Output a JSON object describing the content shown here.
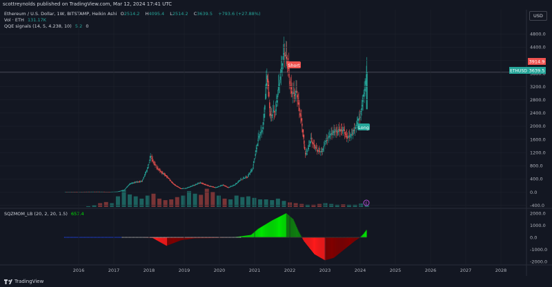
{
  "published": "scottreynolds published on TradingView.com, Mar 12, 2024 17:41 UTC",
  "legend": {
    "symbol": "Ethereum / U.S. Dollar, 1W, BITSTAMP, Heikin Ashi",
    "o_label": "O",
    "o": "2514.2",
    "h_label": "H",
    "h": "4095.4",
    "l_label": "L",
    "l": "2514.2",
    "c_label": "C",
    "c": "3639.5",
    "change": "+793.6 (+27.88%)",
    "vol_label": "Vol · ETH",
    "vol": "131.17K",
    "qqe_label": "QQE signals (14, 5, 4.238, 10)",
    "qqe_v1": "5.2",
    "qqe_v2": "0"
  },
  "sqz_legend": {
    "label": "SQZMOM_LB (20, 2, 20, 1.5)",
    "value": "657.4"
  },
  "currency_button": "USD",
  "price_axis": {
    "ticks": [
      "4800.0",
      "4400.0",
      "4000.0",
      "3600.0",
      "3200.0",
      "2800.0",
      "2400.0",
      "2000.0",
      "1600.0",
      "1200.0",
      "800.0",
      "400.0",
      "0.0",
      "-400.0"
    ],
    "tick_values": [
      4800,
      4400,
      4000,
      3600,
      3200,
      2800,
      2400,
      2000,
      1600,
      1200,
      800,
      400,
      0,
      -400
    ]
  },
  "price_tags": {
    "high_tag": "3914.9",
    "high_value": 3914.9,
    "symbol_tag": "ETHUSD",
    "last_tag": "3639.5",
    "last_value": 3639.5
  },
  "osc_axis": {
    "ticks": [
      "2000.0",
      "1000.0",
      "0.0",
      "-1000.0",
      "-2000.0"
    ],
    "tick_values": [
      2000,
      1000,
      0,
      -1000,
      -2000
    ]
  },
  "time_axis": [
    "2016",
    "2017",
    "2018",
    "2019",
    "2020",
    "2021",
    "2022",
    "2023",
    "2024",
    "2025",
    "2026",
    "2027",
    "2028"
  ],
  "signals": {
    "short": "Short",
    "long": "Long",
    "marker": "E"
  },
  "branding": "TradingView",
  "colors": {
    "up": "#26a69a",
    "down": "#ef5350",
    "bg": "#131722",
    "sqz_up": "#00e600",
    "sqz_down": "#ff1a1a"
  },
  "chart_data": {
    "type": "candlestick",
    "timeframe": "1W",
    "x_range": [
      2015.5,
      2028.5
    ],
    "y_range": [
      -450,
      4950
    ],
    "series_points": [
      {
        "t": 2015.6,
        "v": 10
      },
      {
        "t": 2016.0,
        "v": 10
      },
      {
        "t": 2016.5,
        "v": 12
      },
      {
        "t": 2016.9,
        "v": 10
      },
      {
        "t": 2017.1,
        "v": 15
      },
      {
        "t": 2017.3,
        "v": 70
      },
      {
        "t": 2017.45,
        "v": 250
      },
      {
        "t": 2017.6,
        "v": 300
      },
      {
        "t": 2017.8,
        "v": 330
      },
      {
        "t": 2017.95,
        "v": 700
      },
      {
        "t": 2018.05,
        "v": 1100
      },
      {
        "t": 2018.15,
        "v": 850
      },
      {
        "t": 2018.3,
        "v": 650
      },
      {
        "t": 2018.5,
        "v": 480
      },
      {
        "t": 2018.7,
        "v": 240
      },
      {
        "t": 2018.9,
        "v": 110
      },
      {
        "t": 2019.05,
        "v": 120
      },
      {
        "t": 2019.3,
        "v": 220
      },
      {
        "t": 2019.45,
        "v": 290
      },
      {
        "t": 2019.7,
        "v": 190
      },
      {
        "t": 2019.9,
        "v": 140
      },
      {
        "t": 2020.1,
        "v": 220
      },
      {
        "t": 2020.25,
        "v": 140
      },
      {
        "t": 2020.45,
        "v": 230
      },
      {
        "t": 2020.6,
        "v": 380
      },
      {
        "t": 2020.8,
        "v": 470
      },
      {
        "t": 2020.95,
        "v": 730
      },
      {
        "t": 2021.1,
        "v": 1600
      },
      {
        "t": 2021.25,
        "v": 2000
      },
      {
        "t": 2021.35,
        "v": 3600
      },
      {
        "t": 2021.45,
        "v": 2300
      },
      {
        "t": 2021.6,
        "v": 2500
      },
      {
        "t": 2021.7,
        "v": 3300
      },
      {
        "t": 2021.85,
        "v": 4300
      },
      {
        "t": 2021.95,
        "v": 3800
      },
      {
        "t": 2022.05,
        "v": 3000
      },
      {
        "t": 2022.2,
        "v": 3000
      },
      {
        "t": 2022.35,
        "v": 2000
      },
      {
        "t": 2022.45,
        "v": 1100
      },
      {
        "t": 2022.6,
        "v": 1600
      },
      {
        "t": 2022.75,
        "v": 1300
      },
      {
        "t": 2022.9,
        "v": 1200
      },
      {
        "t": 2023.05,
        "v": 1600
      },
      {
        "t": 2023.2,
        "v": 1800
      },
      {
        "t": 2023.35,
        "v": 1850
      },
      {
        "t": 2023.5,
        "v": 1900
      },
      {
        "t": 2023.65,
        "v": 1650
      },
      {
        "t": 2023.8,
        "v": 1800
      },
      {
        "t": 2023.92,
        "v": 2100
      },
      {
        "t": 2024.0,
        "v": 2300
      },
      {
        "t": 2024.1,
        "v": 2900
      },
      {
        "t": 2024.19,
        "v": 3639.5
      }
    ],
    "volume": [
      0,
      0,
      0,
      0,
      2,
      5,
      10,
      13,
      10,
      28,
      45,
      33,
      28,
      22,
      30,
      35,
      22,
      18,
      20,
      26,
      30,
      42,
      35,
      32,
      48,
      40,
      30,
      22,
      20,
      30,
      26,
      28,
      24,
      20,
      20,
      18,
      22,
      16,
      12,
      10,
      8,
      6,
      6,
      8,
      10,
      8,
      6,
      7,
      6,
      6,
      9,
      12
    ],
    "squeeze_momentum": [
      {
        "t": 2015.6,
        "v": 0
      },
      {
        "t": 2017.0,
        "v": 0
      },
      {
        "t": 2017.8,
        "v": 0
      },
      {
        "t": 2018.1,
        "v": -50
      },
      {
        "t": 2018.5,
        "v": -700
      },
      {
        "t": 2018.9,
        "v": -250
      },
      {
        "t": 2019.3,
        "v": -80
      },
      {
        "t": 2019.8,
        "v": -60
      },
      {
        "t": 2020.4,
        "v": 0
      },
      {
        "t": 2020.6,
        "v": 80
      },
      {
        "t": 2020.9,
        "v": 200
      },
      {
        "t": 2021.1,
        "v": 700
      },
      {
        "t": 2021.5,
        "v": 1400
      },
      {
        "t": 2021.9,
        "v": 2000
      },
      {
        "t": 2022.1,
        "v": 1500
      },
      {
        "t": 2022.25,
        "v": 500
      },
      {
        "t": 2022.4,
        "v": -300
      },
      {
        "t": 2022.7,
        "v": -1400
      },
      {
        "t": 2023.0,
        "v": -1900
      },
      {
        "t": 2023.25,
        "v": -1700
      },
      {
        "t": 2023.55,
        "v": -1000
      },
      {
        "t": 2023.85,
        "v": -300
      },
      {
        "t": 2024.0,
        "v": 0
      },
      {
        "t": 2024.1,
        "v": 300
      },
      {
        "t": 2024.19,
        "v": 657.4
      }
    ]
  }
}
